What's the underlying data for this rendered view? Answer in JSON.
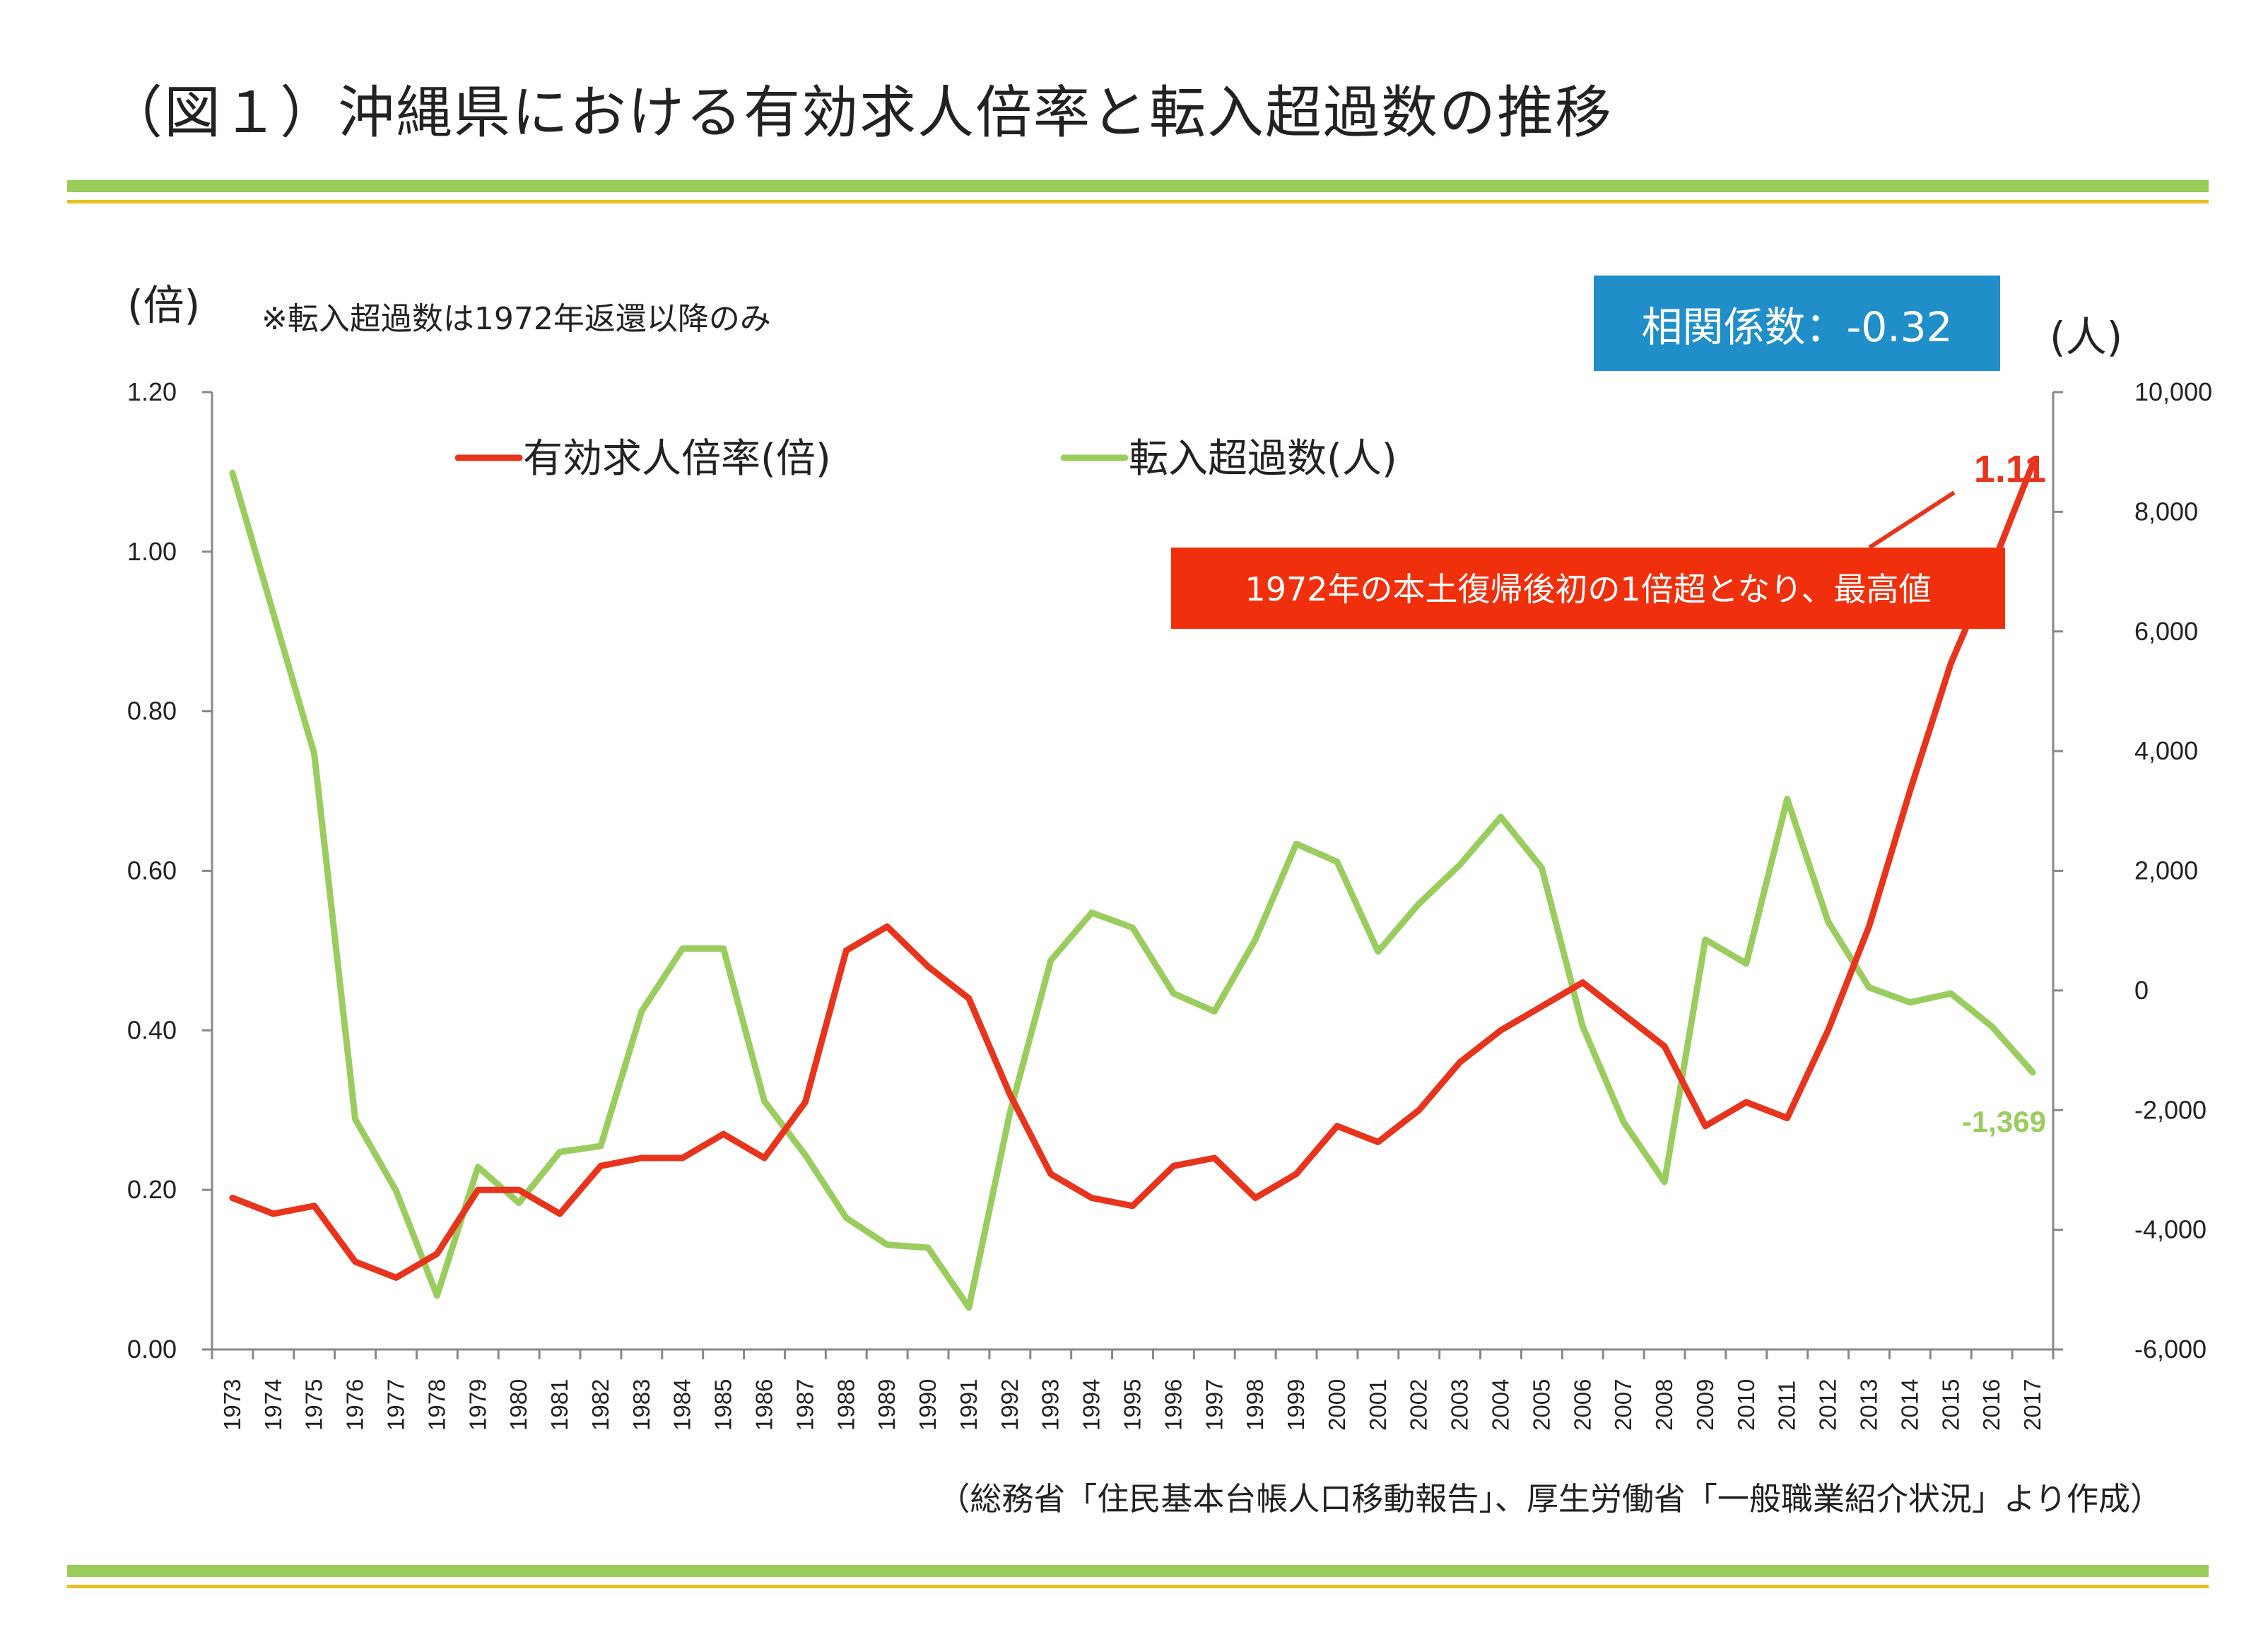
{
  "title": "（図１）沖縄県における有効求人倍率と転入超過数の推移",
  "left_unit": "(倍)",
  "right_unit": "(人)",
  "note": "※転入超過数は1972年返還以降のみ",
  "correlation_label": "相関係数：-0.32",
  "source": "（総務省「住民基本台帳人口移動報告」、厚生労働省「一般職業紹介状況」より作成）",
  "colors": {
    "red": "#e8341c",
    "green": "#9acd5e",
    "blue": "#1f8ec9",
    "rule_green": "#9acc5a",
    "rule_yellow": "#e8c020"
  },
  "chart_data": {
    "type": "line",
    "categories": [
      "1973",
      "1974",
      "1975",
      "1976",
      "1977",
      "1978",
      "1979",
      "1980",
      "1981",
      "1982",
      "1983",
      "1984",
      "1985",
      "1986",
      "1987",
      "1988",
      "1989",
      "1990",
      "1991",
      "1992",
      "1993",
      "1994",
      "1995",
      "1996",
      "1997",
      "1998",
      "1999",
      "2000",
      "2001",
      "2002",
      "2003",
      "2004",
      "2005",
      "2006",
      "2007",
      "2008",
      "2009",
      "2010",
      "2011",
      "2012",
      "2013",
      "2014",
      "2015",
      "2016",
      "2017"
    ],
    "y_left": {
      "ticks": [
        "0.00",
        "0.20",
        "0.40",
        "0.60",
        "0.80",
        "1.00",
        "1.20"
      ],
      "ylim": [
        0,
        1.2
      ]
    },
    "y_right": {
      "ticks": [
        "-6,000",
        "-4,000",
        "-2,000",
        "0",
        "2,000",
        "4,000",
        "6,000",
        "8,000",
        "10,000"
      ],
      "ylim": [
        -6000,
        10000
      ]
    },
    "legend_position": "top",
    "series": [
      {
        "name": "有効求人倍率(倍)",
        "axis": "left",
        "color": "#e8341c",
        "values": [
          0.19,
          0.17,
          0.18,
          0.11,
          0.09,
          0.12,
          0.2,
          0.2,
          0.17,
          0.23,
          0.24,
          0.24,
          0.27,
          0.24,
          0.31,
          0.5,
          0.53,
          0.48,
          0.44,
          0.32,
          0.22,
          0.19,
          0.18,
          0.23,
          0.24,
          0.19,
          0.22,
          0.28,
          0.26,
          0.3,
          0.36,
          0.4,
          0.43,
          0.46,
          0.42,
          0.38,
          0.28,
          0.31,
          0.29,
          0.4,
          0.53,
          0.7,
          0.86,
          0.98,
          1.11
        ]
      },
      {
        "name": "転入超過数(人)",
        "axis": "right",
        "color": "#9acd5e",
        "values": [
          8650,
          6300,
          3950,
          -2150,
          -3350,
          -5100,
          -2950,
          -3550,
          -2700,
          -2600,
          -350,
          700,
          700,
          -1850,
          -2750,
          -3800,
          -4250,
          -4300,
          -5300,
          -2050,
          500,
          1300,
          1050,
          -50,
          -350,
          850,
          2450,
          2150,
          650,
          1450,
          2100,
          2900,
          2050,
          -600,
          -2200,
          -3200,
          850,
          450,
          3200,
          1150,
          50,
          -200,
          -50,
          -600,
          -1369
        ]
      }
    ],
    "annotations": [
      {
        "text": "1.11",
        "color": "#e8341c"
      },
      {
        "text": "1972年の本土復帰後初の1倍超となり、最高値",
        "color": "#ffffff",
        "background": "#f0300c"
      },
      {
        "text": "-1,369",
        "color": "#9acd5e"
      }
    ]
  }
}
